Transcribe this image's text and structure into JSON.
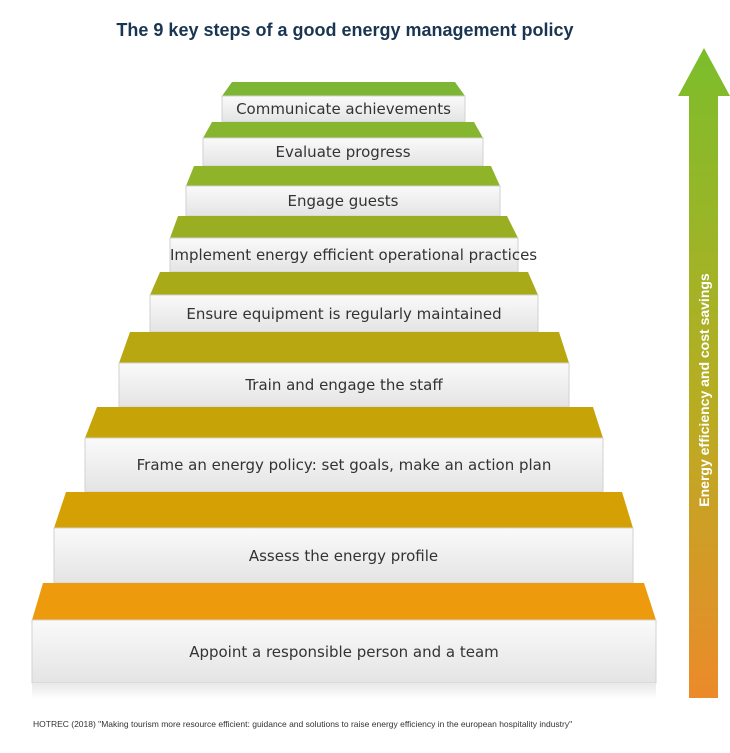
{
  "title": "The 9 key steps of a good energy management policy",
  "steps": [
    {
      "label": "Communicate achievements",
      "tread_color": "#7db534"
    },
    {
      "label": "Evaluate progress",
      "tread_color": "#86b530"
    },
    {
      "label": "Engage guests",
      "tread_color": "#8fb42a"
    },
    {
      "label": "Implement energy efficient operational practices",
      "tread_color": "#9aae22"
    },
    {
      "label": "Ensure equipment is regularly maintained",
      "tread_color": "#a9aa18"
    },
    {
      "label": "Train and engage the staff",
      "tread_color": "#b8a710"
    },
    {
      "label": "Frame an energy policy: set goals, make an action plan",
      "tread_color": "#c6a408"
    },
    {
      "label": "Assess the energy profile",
      "tread_color": "#d5a004"
    },
    {
      "label": "Appoint a responsible person and a team",
      "tread_color": "#ed9a0c"
    }
  ],
  "arrow": {
    "label": "Energy efficiency and cost savings",
    "color_top": "#7cbd2c",
    "color_bottom": "#ec8a2a"
  },
  "source": "HOTREC (2018) \"Making tourism more resource efficient: guidance and solutions to raise energy efficiency in the european hospitality industry\""
}
